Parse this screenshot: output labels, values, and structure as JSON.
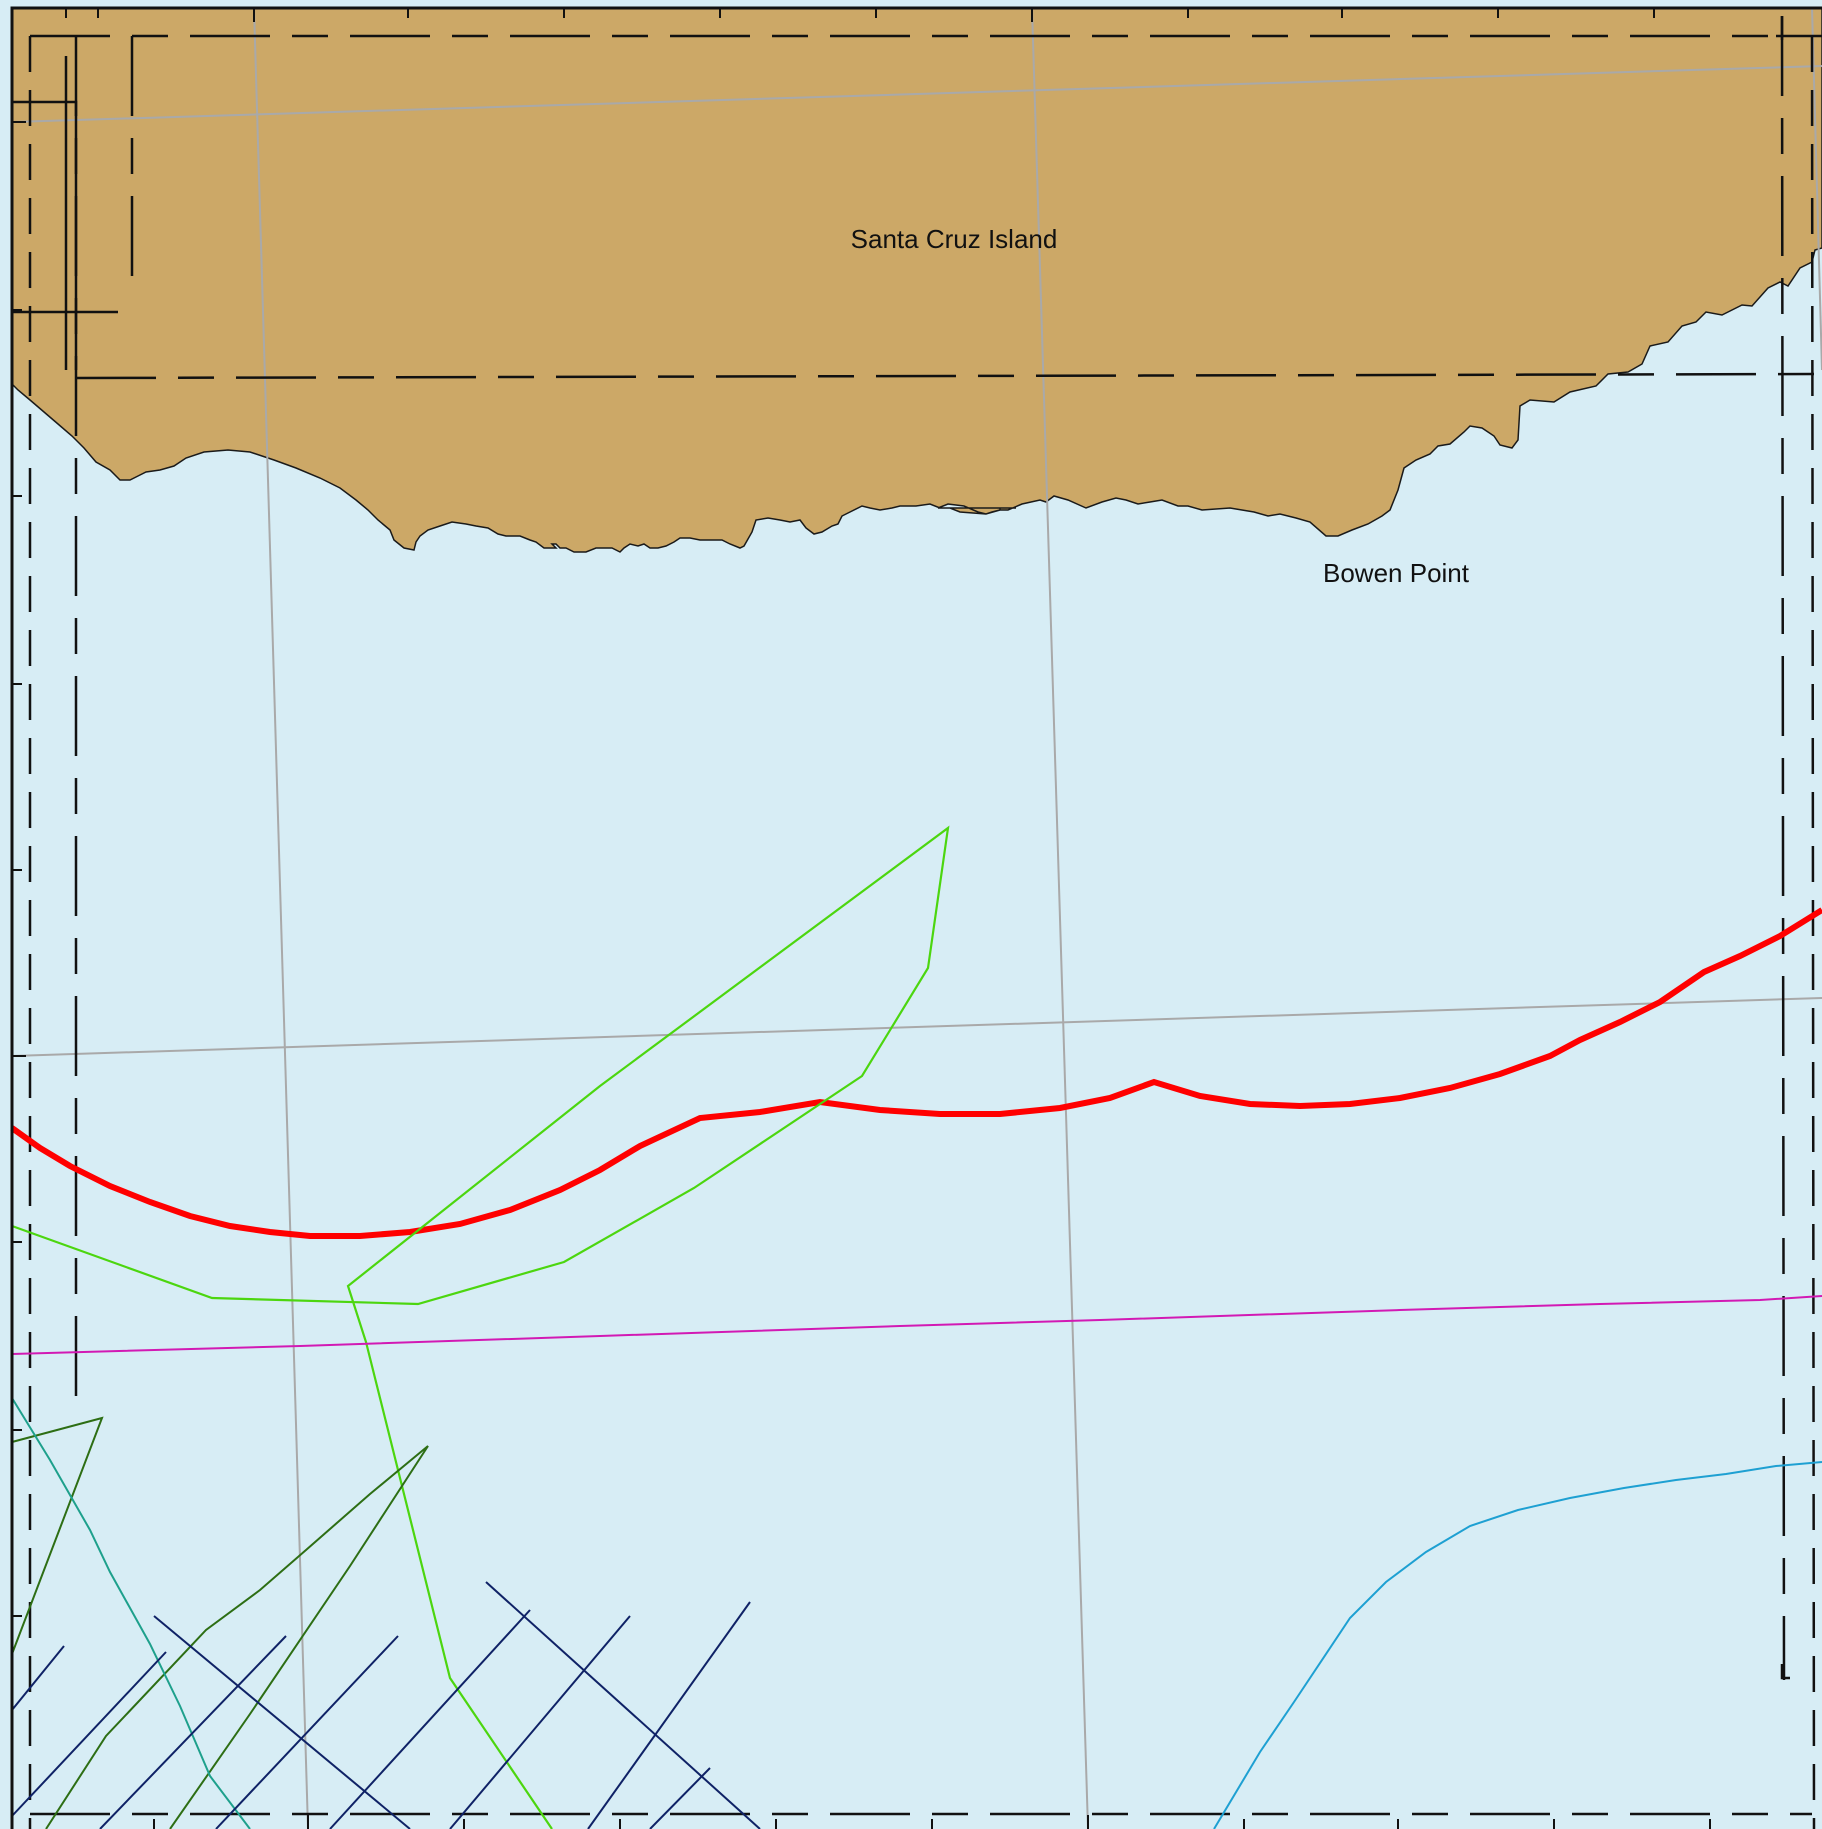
{
  "map": {
    "colors": {
      "water": "#d7edf5",
      "land": "#cca867",
      "coastline": "#1a1a1a",
      "graticule": "#a9a9a9",
      "boundary_dash": "#111111",
      "frame": "#111111",
      "track_red": "#ff0000",
      "track_lime": "#4cd60f",
      "track_magenta": "#d21ab4",
      "track_darkgreen": "#2d6e14",
      "track_teal": "#1ea08c",
      "track_navy": "#0f2266",
      "track_cyan": "#1ea0d2"
    },
    "labels": {
      "island": "Santa Cruz Island",
      "point": "Bowen Point"
    }
  }
}
